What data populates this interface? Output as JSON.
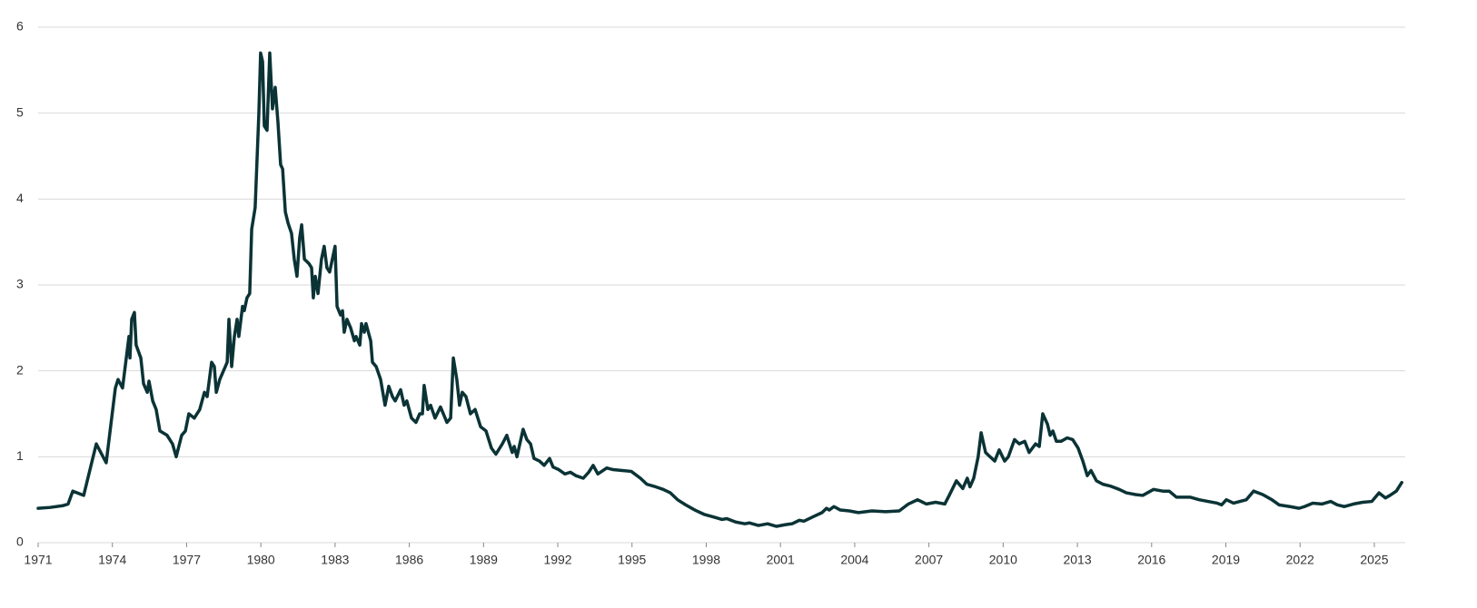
{
  "chart_data": {
    "type": "line",
    "color": "#0b3336",
    "grid": true,
    "xlim": [
      1971,
      2026.25
    ],
    "ylim": [
      0,
      6
    ],
    "xticks": [
      1971,
      1974,
      1977,
      1980,
      1983,
      1986,
      1989,
      1992,
      1995,
      1998,
      2001,
      2004,
      2007,
      2010,
      2013,
      2016,
      2019,
      2022,
      2025
    ],
    "yticks": [
      0,
      1,
      2,
      3,
      4,
      5,
      6
    ],
    "x": [
      1971.0,
      1971.48,
      1971.99,
      1972.21,
      1972.4,
      1972.84,
      1973.35,
      1973.75,
      1974.12,
      1974.23,
      1974.41,
      1974.67,
      1974.71,
      1974.78,
      1974.89,
      1974.96,
      1975.15,
      1975.26,
      1975.41,
      1975.48,
      1975.63,
      1975.77,
      1975.92,
      1976.21,
      1976.43,
      1976.58,
      1976.8,
      1976.95,
      1977.09,
      1977.31,
      1977.53,
      1977.72,
      1977.83,
      1978.01,
      1978.12,
      1978.2,
      1978.34,
      1978.49,
      1978.64,
      1978.71,
      1978.82,
      1978.93,
      1979.04,
      1979.11,
      1979.26,
      1979.33,
      1979.44,
      1979.55,
      1979.63,
      1979.77,
      1979.92,
      1979.99,
      1980.07,
      1980.14,
      1980.25,
      1980.36,
      1980.47,
      1980.58,
      1980.69,
      1980.8,
      1980.88,
      1980.99,
      1981.1,
      1981.24,
      1981.35,
      1981.46,
      1981.57,
      1981.65,
      1981.76,
      1981.94,
      1982.05,
      1982.12,
      1982.2,
      1982.31,
      1982.45,
      1982.56,
      1982.67,
      1982.78,
      1983.0,
      1983.08,
      1983.22,
      1983.3,
      1983.37,
      1983.48,
      1983.63,
      1983.78,
      1983.85,
      1984.0,
      1984.07,
      1984.18,
      1984.25,
      1984.44,
      1984.51,
      1984.66,
      1984.84,
      1985.02,
      1985.17,
      1985.32,
      1985.43,
      1985.65,
      1985.79,
      1985.9,
      1986.09,
      1986.27,
      1986.42,
      1986.53,
      1986.6,
      1986.75,
      1986.86,
      1987.04,
      1987.26,
      1987.52,
      1987.67,
      1987.78,
      1987.92,
      1988.03,
      1988.14,
      1988.29,
      1988.47,
      1988.66,
      1988.88,
      1989.1,
      1989.32,
      1989.5,
      1989.76,
      1989.94,
      1990.16,
      1990.24,
      1990.35,
      1990.6,
      1990.75,
      1990.9,
      1991.04,
      1991.26,
      1991.45,
      1991.67,
      1991.81,
      1992.04,
      1992.29,
      1992.51,
      1992.73,
      1993.03,
      1993.25,
      1993.43,
      1993.62,
      1993.98,
      1994.24,
      1994.61,
      1994.97,
      1995.34,
      1995.6,
      1995.96,
      1996.26,
      1996.55,
      1996.84,
      1997.17,
      1997.54,
      1997.91,
      1998.28,
      1998.64,
      1998.83,
      1999.19,
      1999.56,
      1999.74,
      2000.11,
      2000.48,
      2000.84,
      2001.21,
      2001.47,
      2001.76,
      2001.95,
      2002.31,
      2002.68,
      2002.86,
      2002.97,
      2003.16,
      2003.42,
      2003.78,
      2004.15,
      2004.7,
      2005.25,
      2005.8,
      2006.17,
      2006.54,
      2006.9,
      2007.27,
      2007.64,
      2007.82,
      2008.11,
      2008.37,
      2008.55,
      2008.66,
      2008.81,
      2008.99,
      2009.11,
      2009.29,
      2009.47,
      2009.66,
      2009.84,
      2010.06,
      2010.21,
      2010.46,
      2010.65,
      2010.87,
      2011.05,
      2011.31,
      2011.46,
      2011.6,
      2011.79,
      2011.9,
      2012.01,
      2012.15,
      2012.34,
      2012.59,
      2012.81,
      2013.03,
      2013.22,
      2013.4,
      2013.55,
      2013.77,
      2014.03,
      2014.32,
      2014.69,
      2014.98,
      2015.35,
      2015.64,
      2016.08,
      2016.45,
      2016.71,
      2017.0,
      2017.55,
      2017.92,
      2018.28,
      2018.65,
      2018.83,
      2019.02,
      2019.31,
      2019.57,
      2019.83,
      2020.12,
      2020.49,
      2020.86,
      2021.15,
      2021.59,
      2021.96,
      2022.18,
      2022.51,
      2022.88,
      2023.24,
      2023.5,
      2023.79,
      2024.16,
      2024.53,
      2024.9,
      2025.19,
      2025.45,
      2025.63,
      2025.89,
      2026.11
    ],
    "values": [
      0.4,
      0.41,
      0.43,
      0.45,
      0.6,
      0.55,
      1.15,
      0.93,
      1.8,
      1.9,
      1.8,
      2.4,
      2.15,
      2.6,
      2.68,
      2.3,
      2.15,
      1.85,
      1.75,
      1.88,
      1.65,
      1.55,
      1.3,
      1.25,
      1.15,
      1.0,
      1.25,
      1.3,
      1.5,
      1.45,
      1.55,
      1.75,
      1.7,
      2.1,
      2.05,
      1.75,
      1.9,
      2.0,
      2.1,
      2.6,
      2.05,
      2.4,
      2.6,
      2.4,
      2.75,
      2.7,
      2.85,
      2.9,
      3.65,
      3.9,
      5.0,
      5.7,
      5.6,
      4.85,
      4.8,
      5.7,
      5.05,
      5.3,
      4.9,
      4.4,
      4.35,
      3.85,
      3.72,
      3.6,
      3.3,
      3.1,
      3.55,
      3.7,
      3.3,
      3.25,
      3.2,
      2.85,
      3.1,
      2.9,
      3.3,
      3.45,
      3.2,
      3.15,
      3.45,
      2.75,
      2.65,
      2.7,
      2.45,
      2.6,
      2.5,
      2.35,
      2.4,
      2.3,
      2.55,
      2.45,
      2.55,
      2.35,
      2.1,
      2.05,
      1.9,
      1.6,
      1.82,
      1.7,
      1.65,
      1.78,
      1.6,
      1.65,
      1.45,
      1.4,
      1.5,
      1.5,
      1.83,
      1.55,
      1.6,
      1.45,
      1.58,
      1.4,
      1.45,
      2.15,
      1.9,
      1.6,
      1.75,
      1.7,
      1.5,
      1.55,
      1.35,
      1.3,
      1.1,
      1.03,
      1.15,
      1.25,
      1.05,
      1.12,
      1.0,
      1.32,
      1.2,
      1.15,
      0.98,
      0.95,
      0.9,
      0.98,
      0.88,
      0.85,
      0.8,
      0.82,
      0.78,
      0.75,
      0.82,
      0.9,
      0.8,
      0.87,
      0.85,
      0.84,
      0.83,
      0.75,
      0.68,
      0.65,
      0.62,
      0.58,
      0.5,
      0.44,
      0.38,
      0.33,
      0.3,
      0.27,
      0.28,
      0.24,
      0.22,
      0.23,
      0.2,
      0.22,
      0.19,
      0.21,
      0.22,
      0.26,
      0.25,
      0.3,
      0.35,
      0.4,
      0.38,
      0.42,
      0.38,
      0.37,
      0.35,
      0.37,
      0.36,
      0.37,
      0.45,
      0.5,
      0.45,
      0.47,
      0.45,
      0.55,
      0.72,
      0.63,
      0.75,
      0.65,
      0.75,
      1.0,
      1.28,
      1.05,
      1.0,
      0.95,
      1.08,
      0.95,
      1.0,
      1.2,
      1.15,
      1.18,
      1.05,
      1.15,
      1.12,
      1.5,
      1.38,
      1.25,
      1.3,
      1.18,
      1.18,
      1.22,
      1.2,
      1.1,
      0.95,
      0.78,
      0.84,
      0.72,
      0.68,
      0.66,
      0.62,
      0.58,
      0.56,
      0.55,
      0.62,
      0.6,
      0.6,
      0.53,
      0.53,
      0.5,
      0.48,
      0.46,
      0.44,
      0.5,
      0.46,
      0.48,
      0.5,
      0.6,
      0.56,
      0.5,
      0.44,
      0.42,
      0.4,
      0.42,
      0.46,
      0.45,
      0.48,
      0.44,
      0.42,
      0.45,
      0.47,
      0.48,
      0.58,
      0.52,
      0.55,
      0.6,
      0.7
    ]
  }
}
